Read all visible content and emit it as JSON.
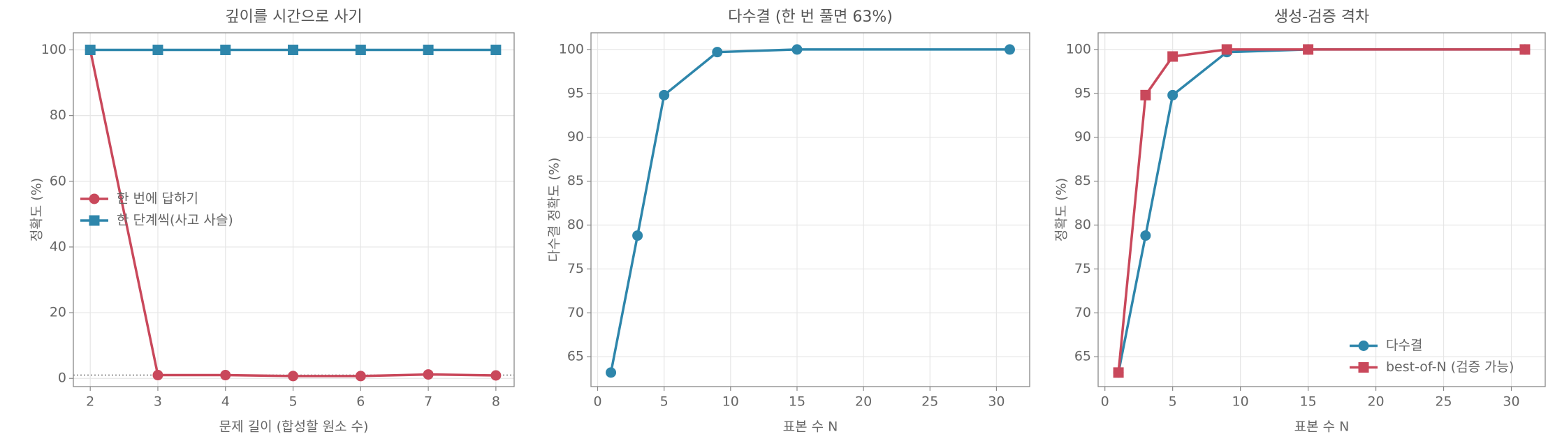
{
  "chart_data": [
    {
      "type": "line",
      "title": "깊이를 시간으로 사기",
      "xlabel": "문제 길이 (합성할 원소 수)",
      "ylabel": "정확도 (%)",
      "x": [
        2,
        3,
        4,
        5,
        6,
        7,
        8
      ],
      "series": [
        {
          "name": "한 번에 답하기",
          "color": "#c9485b",
          "marker": "circle",
          "values": [
            100,
            1,
            1,
            0.7,
            0.7,
            1.2,
            0.9
          ]
        },
        {
          "name": "한 단계씩(사고 사슬)",
          "color": "#2e86ab",
          "marker": "square",
          "values": [
            100,
            100,
            100,
            100,
            100,
            100,
            100
          ]
        }
      ],
      "hline": 1,
      "xlim": [
        1.75,
        8.27
      ],
      "ylim": [
        -2.5,
        105.2
      ],
      "xticks": [
        2,
        3,
        4,
        5,
        6,
        7,
        8
      ],
      "yticks": [
        0,
        20,
        40,
        60,
        80,
        100
      ],
      "grid": true,
      "legend": "center left"
    },
    {
      "type": "line",
      "title": "다수결 (한 번 풀면 63%)",
      "xlabel": "표본 수 N",
      "ylabel": "다수결 정확도 (%)",
      "x": [
        1,
        3,
        5,
        9,
        15,
        31
      ],
      "series": [
        {
          "color": "#2e86ab",
          "marker": "circle",
          "values": [
            63.2,
            78.8,
            94.8,
            99.7,
            100,
            100
          ]
        }
      ],
      "xlim": [
        -0.5,
        32.5
      ],
      "ylim": [
        61.6,
        101.9
      ],
      "xticks": [
        0,
        5,
        10,
        15,
        20,
        25,
        30
      ],
      "yticks": [
        65,
        70,
        75,
        80,
        85,
        90,
        95,
        100
      ],
      "grid": true
    },
    {
      "type": "line",
      "title": "생성-검증 격차",
      "xlabel": "표본 수 N",
      "ylabel": "정확도 (%)",
      "x": [
        1,
        3,
        5,
        9,
        15,
        31
      ],
      "series": [
        {
          "name": "다수결",
          "color": "#2e86ab",
          "marker": "circle",
          "values": [
            63.2,
            78.8,
            94.8,
            99.7,
            100,
            100
          ]
        },
        {
          "name": "best-of-N (검증 가능)",
          "color": "#c9485b",
          "marker": "square",
          "values": [
            63.2,
            94.8,
            99.2,
            100,
            100,
            100
          ]
        }
      ],
      "xlim": [
        -0.5,
        32.5
      ],
      "ylim": [
        61.6,
        101.9
      ],
      "xticks": [
        0,
        5,
        10,
        15,
        20,
        25,
        30
      ],
      "yticks": [
        65,
        70,
        75,
        80,
        85,
        90,
        95,
        100
      ],
      "grid": true,
      "legend": "lower right"
    }
  ]
}
